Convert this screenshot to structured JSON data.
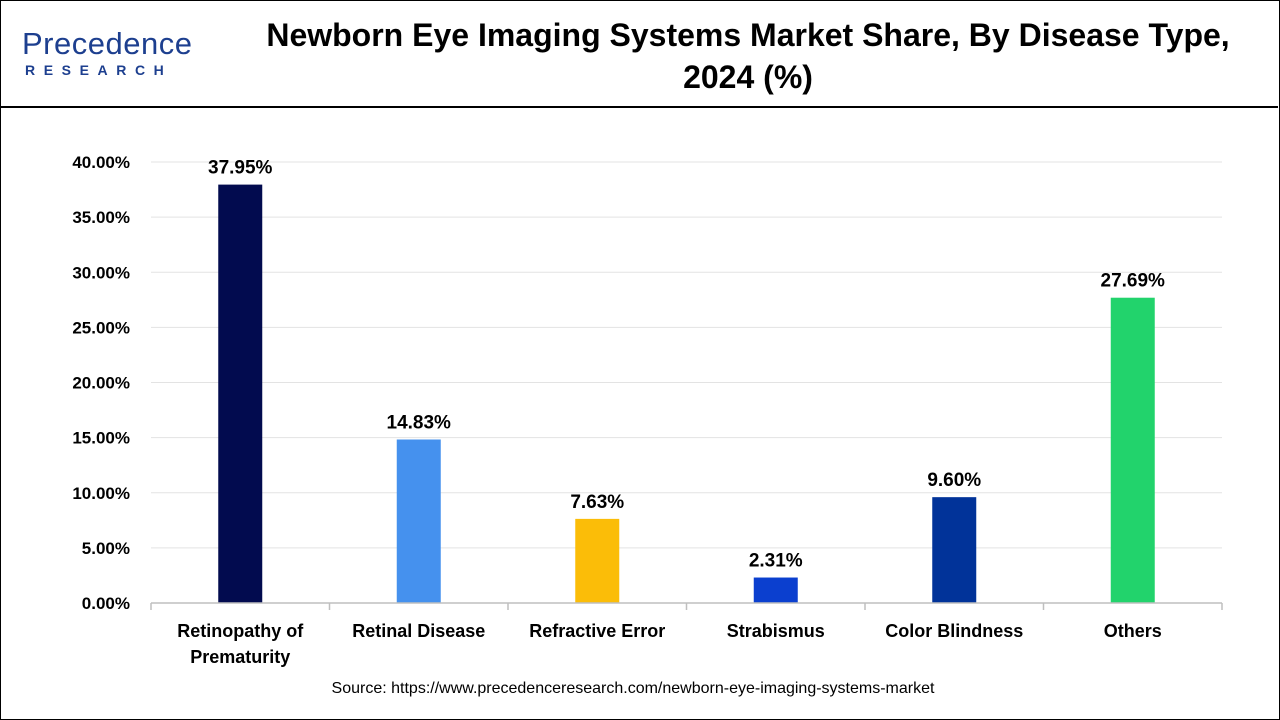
{
  "logo": {
    "main": "Precedence",
    "sub": "RESEARCH"
  },
  "source": "Source: https://www.precedenceresearch.com/newborn-eye-imaging-systems-market",
  "chart_data": {
    "type": "bar",
    "title": "Newborn Eye Imaging Systems Market Share, By Disease Type, 2024 (%)",
    "xlabel": "",
    "ylabel": "",
    "ylim": [
      0,
      40
    ],
    "yticks": [
      "0.00%",
      "5.00%",
      "10.00%",
      "15.00%",
      "20.00%",
      "25.00%",
      "30.00%",
      "35.00%",
      "40.00%"
    ],
    "grid": true,
    "legend": "none",
    "categories": [
      [
        "Retinopathy of",
        "Prematurity"
      ],
      [
        "Retinal Disease"
      ],
      [
        "Refractive Error"
      ],
      [
        "Strabismus"
      ],
      [
        "Color Blindness"
      ],
      [
        "Others"
      ]
    ],
    "values": [
      37.95,
      14.83,
      7.63,
      2.31,
      9.6,
      27.69
    ],
    "labels": [
      "37.95%",
      "14.83%",
      "7.63%",
      "2.31%",
      "9.60%",
      "27.69%"
    ],
    "colors": [
      "#020b4f",
      "#4591ee",
      "#fbbd08",
      "#0b3fcf",
      "#013399",
      "#22d36c"
    ]
  }
}
